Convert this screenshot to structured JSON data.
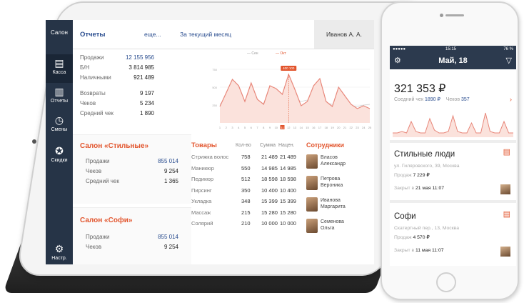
{
  "sidebar": {
    "logo": "Салон",
    "items": [
      {
        "label": "Касса",
        "icon": "cash-register-icon"
      },
      {
        "label": "Отчеты",
        "icon": "bar-chart-icon"
      },
      {
        "label": "Смены",
        "icon": "clock-icon"
      },
      {
        "label": "Скидки",
        "icon": "discount-icon"
      }
    ],
    "settings": "Настр."
  },
  "header": {
    "title": "Отчеты",
    "more": "еще...",
    "period": "За текущий месяц",
    "user": "Иванов А. А."
  },
  "summary": {
    "rows": [
      {
        "label": "Продажи",
        "value": "12 155 956",
        "blue": true
      },
      {
        "label": "Б/Н",
        "value": "3 814 985"
      },
      {
        "label": "Наличными",
        "value": "921 489"
      },
      {
        "label": "Возвраты",
        "value": "9 197"
      },
      {
        "label": "Чеков",
        "value": "5 234"
      },
      {
        "label": "Средний чек",
        "value": "1 890"
      }
    ]
  },
  "chart": {
    "legend": [
      "Сен",
      "Окт"
    ],
    "tooltip": "400 100",
    "y_ticks": [
      "750",
      "500",
      "250"
    ],
    "x_ticks": [
      "1",
      "2",
      "3",
      "4",
      "5",
      "6",
      "7",
      "8",
      "9",
      "10",
      "11",
      "12",
      "13",
      "14",
      "15",
      "16",
      "17",
      "18",
      "19",
      "20",
      "21",
      "22",
      "23",
      "24",
      "25"
    ],
    "highlight": "11"
  },
  "chart_data": {
    "type": "line",
    "series": [
      {
        "name": "Сен",
        "color": "#cfcfcf",
        "values": [
          260,
          330,
          300,
          240,
          270,
          310,
          260,
          280,
          300,
          330,
          360,
          380,
          340,
          300,
          320,
          340,
          300,
          280,
          260,
          250,
          260,
          240,
          230,
          250,
          260
        ]
      },
      {
        "name": "Окт",
        "color": "#e8877a",
        "values": [
          230,
          420,
          610,
          520,
          300,
          560,
          330,
          260,
          520,
          480,
          400,
          680,
          470,
          240,
          300,
          520,
          620,
          300,
          230,
          500,
          380,
          260,
          200,
          240,
          200
        ]
      }
    ],
    "ylim": [
      0,
      800
    ]
  },
  "salon1": {
    "title": "Салон «Стильные»",
    "rows": [
      {
        "label": "Продажи",
        "value": "855 014",
        "blue": true
      },
      {
        "label": "Чеков",
        "value": "9 254"
      },
      {
        "label": "Средний чек",
        "value": "1 365"
      }
    ]
  },
  "salon2": {
    "title": "Салон «Софи»",
    "rows": [
      {
        "label": "Продажи",
        "value": "855 014",
        "blue": true
      },
      {
        "label": "Чеков",
        "value": "9 254"
      }
    ]
  },
  "goods": {
    "title": "Товары",
    "columns": [
      "Кол-во",
      "Сумма",
      "Нацен."
    ],
    "rows": [
      {
        "name": "Стрижка волос",
        "qty": "758",
        "sum": "21 489",
        "markup": "21 489"
      },
      {
        "name": "Маникюр",
        "qty": "550",
        "sum": "14 985",
        "markup": "14 985"
      },
      {
        "name": "Педикюр",
        "qty": "512",
        "sum": "18 598",
        "markup": "18 598"
      },
      {
        "name": "Пирсинг",
        "qty": "350",
        "sum": "10 400",
        "markup": "10 400"
      },
      {
        "name": "Укладка",
        "qty": "348",
        "sum": "15 399",
        "markup": "15 399"
      },
      {
        "name": "Массаж",
        "qty": "215",
        "sum": "15 280",
        "markup": "15 280"
      },
      {
        "name": "Солярий",
        "qty": "210",
        "sum": "10 000",
        "markup": "10 000"
      }
    ]
  },
  "staff": {
    "title": "Сотрудники",
    "people": [
      {
        "first": "Власов",
        "last": "Александр"
      },
      {
        "first": "Петрова",
        "last": "Вероника"
      },
      {
        "first": "Иванова",
        "last": "Маргарита"
      },
      {
        "first": "Семенова",
        "last": "Ольга"
      }
    ]
  },
  "phone": {
    "time": "15:15",
    "battery": "76 %",
    "date": "Май, 18",
    "total": "321 353 ₽",
    "avg_label": "Соедний чек",
    "avg_value": "1890 ₽",
    "checks_label": "Чеков",
    "checks_value": "357",
    "chevron": "›",
    "spark": [
      2,
      2,
      3,
      2,
      10,
      3,
      2,
      2,
      12,
      4,
      2,
      2,
      3,
      14,
      3,
      2,
      2,
      9,
      2,
      2,
      16,
      3,
      2,
      2,
      10,
      2,
      2
    ],
    "salons": [
      {
        "name": "Стильные люди",
        "address": "ул. Гиляровского, 39, Москва",
        "sales_label": "Продаж",
        "sales": "7 229 ₽",
        "closed_label": "Закрыт в",
        "closed": "21 мая 11:07"
      },
      {
        "name": "Софи",
        "address": "Скатертный пер., 13, Москва",
        "sales_label": "Продаж",
        "sales": "4 570 ₽",
        "closed_label": "Закрыт в",
        "closed": "11 мая 11:07"
      }
    ]
  }
}
